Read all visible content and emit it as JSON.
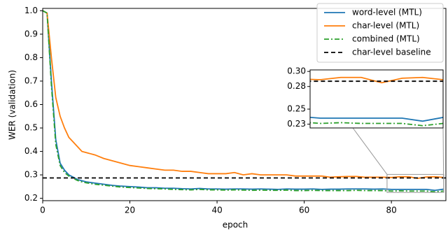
{
  "chart_data": {
    "type": "line",
    "xlabel": "epoch",
    "ylabel": "WER (validation)",
    "x": [
      0,
      1,
      2,
      3,
      4,
      5,
      6,
      7,
      8,
      9,
      10,
      12,
      14,
      16,
      18,
      20,
      22,
      24,
      26,
      28,
      30,
      32,
      34,
      36,
      38,
      40,
      42,
      44,
      46,
      48,
      50,
      52,
      54,
      56,
      58,
      60,
      62,
      64,
      66,
      68,
      70,
      72,
      74,
      76,
      78,
      80,
      82,
      84,
      86,
      88,
      90,
      92
    ],
    "series": [
      {
        "name": "word-level (MTL)",
        "color": "#1f77b4",
        "linestyle": "solid",
        "values": [
          1.0,
          0.99,
          0.7,
          0.45,
          0.35,
          0.32,
          0.3,
          0.29,
          0.28,
          0.275,
          0.27,
          0.265,
          0.26,
          0.255,
          0.252,
          0.25,
          0.248,
          0.245,
          0.245,
          0.243,
          0.243,
          0.241,
          0.24,
          0.242,
          0.24,
          0.24,
          0.239,
          0.24,
          0.24,
          0.239,
          0.24,
          0.239,
          0.238,
          0.24,
          0.239,
          0.239,
          0.24,
          0.238,
          0.239,
          0.239,
          0.24,
          0.24,
          0.24,
          0.239,
          0.24,
          0.238,
          0.238,
          0.238,
          0.238,
          0.238,
          0.234,
          0.239
        ]
      },
      {
        "name": "char-level (MTL)",
        "color": "#ff7f0e",
        "linestyle": "solid",
        "values": [
          1.0,
          0.99,
          0.8,
          0.63,
          0.55,
          0.5,
          0.46,
          0.44,
          0.42,
          0.4,
          0.395,
          0.385,
          0.37,
          0.36,
          0.35,
          0.34,
          0.335,
          0.33,
          0.325,
          0.32,
          0.32,
          0.315,
          0.315,
          0.31,
          0.305,
          0.305,
          0.305,
          0.31,
          0.3,
          0.305,
          0.3,
          0.3,
          0.3,
          0.3,
          0.295,
          0.295,
          0.295,
          0.295,
          0.29,
          0.292,
          0.293,
          0.293,
          0.29,
          0.29,
          0.29,
          0.289,
          0.292,
          0.292,
          0.285,
          0.291,
          0.292,
          0.289
        ]
      },
      {
        "name": "combined (MTL)",
        "color": "#2ca02c",
        "linestyle": "dashdot",
        "values": [
          1.0,
          0.99,
          0.68,
          0.43,
          0.34,
          0.31,
          0.295,
          0.285,
          0.276,
          0.27,
          0.266,
          0.26,
          0.256,
          0.252,
          0.248,
          0.246,
          0.244,
          0.242,
          0.241,
          0.24,
          0.238,
          0.237,
          0.236,
          0.238,
          0.236,
          0.236,
          0.235,
          0.236,
          0.235,
          0.234,
          0.235,
          0.234,
          0.234,
          0.235,
          0.233,
          0.233,
          0.234,
          0.233,
          0.233,
          0.233,
          0.233,
          0.234,
          0.233,
          0.233,
          0.233,
          0.231,
          0.232,
          0.231,
          0.231,
          0.231,
          0.228,
          0.231
        ]
      },
      {
        "name": "char-level baseline",
        "color": "#000000",
        "linestyle": "dashed",
        "x": [
          0,
          92.5
        ],
        "values": [
          0.287,
          0.287
        ]
      }
    ],
    "xlim": [
      0,
      92.5
    ],
    "ylim": [
      0.19,
      1.01
    ],
    "xticks": [
      0,
      20,
      40,
      60,
      80
    ],
    "yticks": [
      0.2,
      0.3,
      0.4,
      0.5,
      0.6,
      0.7,
      0.8,
      0.9,
      {
        "value": 1,
        "label": "1.0"
      }
    ],
    "legend": "upper right",
    "inset": {
      "xlim": [
        79,
        92
      ],
      "ylim": [
        0.225,
        0.302
      ],
      "yticks": [
        0.23,
        0.25,
        0.28,
        {
          "value": 0.3,
          "label": "0.30"
        }
      ]
    }
  }
}
